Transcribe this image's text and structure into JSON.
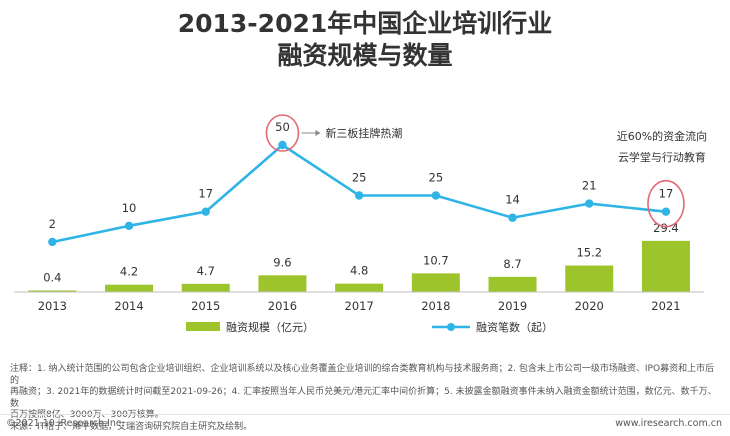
{
  "title_line1": "2013-2021年中国企业培训行业",
  "title_line2": "融资规模与数量",
  "chart_data": {
    "type": "bar+line",
    "categories": [
      "2013",
      "2014",
      "2015",
      "2016",
      "2017",
      "2018",
      "2019",
      "2020",
      "2021"
    ],
    "series": [
      {
        "name": "融资规模（亿元）",
        "type": "bar",
        "values": [
          0.4,
          4.2,
          4.7,
          9.6,
          4.8,
          10.7,
          8.7,
          15.2,
          29.4
        ],
        "color": "#9dc42a"
      },
      {
        "name": "融资笔数（起）",
        "type": "line",
        "values": [
          2,
          10,
          17,
          50,
          25,
          25,
          14,
          21,
          17
        ],
        "color": "#2fb4e6"
      }
    ],
    "annotations": [
      {
        "text": "新三板挂牌热潮",
        "category": "2016"
      },
      {
        "text": "近60%的资金流向",
        "category": "2021"
      },
      {
        "text": "云学堂与行动教育",
        "category": "2021"
      }
    ],
    "legend_position": "bottom"
  },
  "notes": {
    "line1": "注释：1. 纳入统计范围的公司包含企业培训组织、企业培训系统以及核心业务覆盖企业培训的综合类教育机构与技术服务商；2. 包含未上市公司一级市场融资、IPO募资和上市后的",
    "line2": "再融资；3. 2021年的数据统计时间截至2021-09-26；4. 汇率按照当年人民币兑美元/港元汇率中间价折算；5. 未披露金额融资事件未纳入融资金额统计范围，数亿元、数千万、数",
    "line3": "百万按照8亿、3000万、300万核算。",
    "line4": "来源：IT桔子、烯牛数据，艾瑞咨询研究院自主研究及绘制。"
  },
  "footer": {
    "copyright": "©2021.10 iResearch Inc.",
    "website": "www.iresearch.com.cn"
  }
}
